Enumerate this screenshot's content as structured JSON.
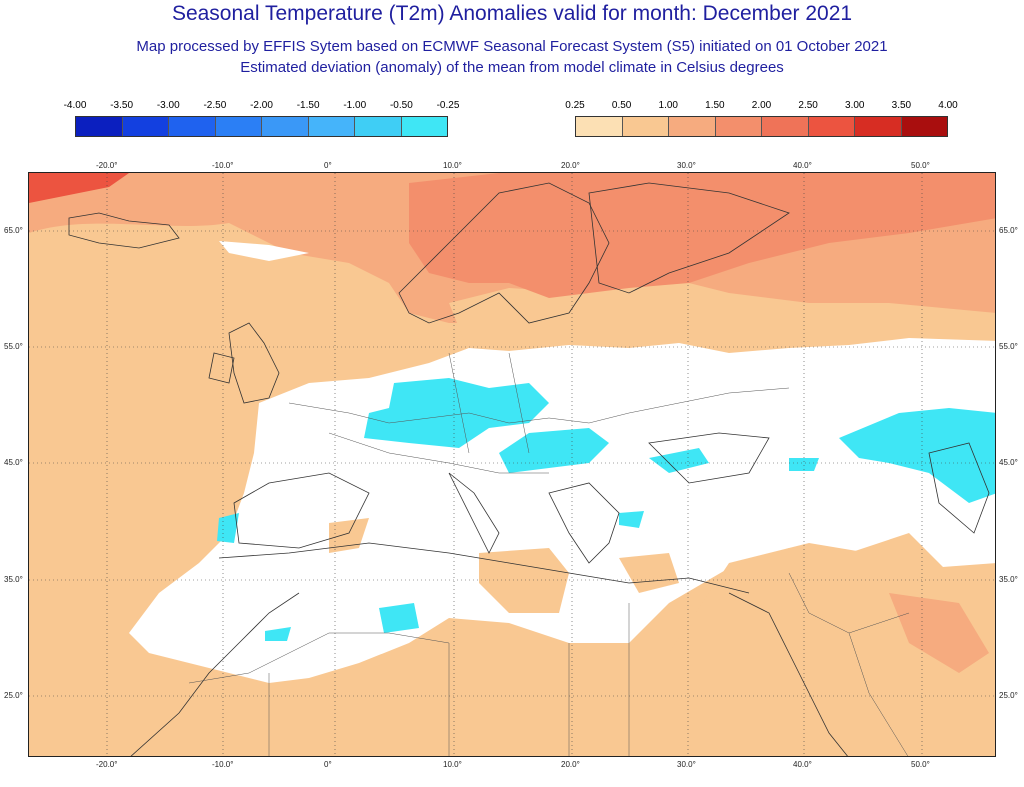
{
  "header": {
    "title": "Seasonal Temperature (T2m) Anomalies valid for month: December 2021",
    "subtitle1": "Map processed by EFFIS Sytem based on ECMWF Seasonal Forecast System (S5) initiated on 01 October 2021",
    "subtitle2": "Estimated deviation (anomaly) of the mean from model climate in Celsius degrees"
  },
  "legend_cold": {
    "labels": [
      "-4.00",
      "-3.50",
      "-3.00",
      "-2.50",
      "-2.00",
      "-1.50",
      "-1.00",
      "-0.50",
      "-0.25"
    ],
    "colors": [
      "#0b1fbf",
      "#1340e0",
      "#1f62ef",
      "#2b7ff5",
      "#3a98f7",
      "#45b4fa",
      "#3fcef5",
      "#3fe6f5"
    ]
  },
  "legend_warm": {
    "labels": [
      "0.25",
      "0.50",
      "1.00",
      "1.50",
      "2.00",
      "2.50",
      "3.00",
      "3.50",
      "4.00"
    ],
    "colors": [
      "#fce0b4",
      "#f9c892",
      "#f6ab7f",
      "#f38f6c",
      "#ef7358",
      "#ec5440",
      "#d72d23",
      "#a90e0e"
    ]
  },
  "map": {
    "lon_labels": [
      "-20.0°",
      "-10.0°",
      "0°",
      "10.0°",
      "20.0°",
      "30.0°",
      "40.0°",
      "50.0°"
    ],
    "lat_labels": [
      "65.0°",
      "55.0°",
      "45.0°",
      "35.0°",
      "25.0°"
    ]
  }
}
